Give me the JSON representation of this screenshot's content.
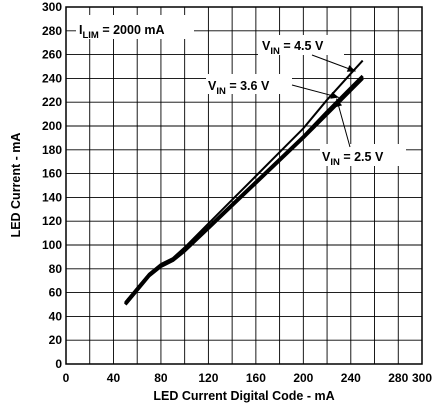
{
  "chart_data": {
    "type": "line",
    "xlabel": "LED Current Digital Code - mA",
    "ylabel": "LED Current - mA",
    "xlim": [
      0,
      300
    ],
    "ylim": [
      0,
      300
    ],
    "xticks": [
      0,
      40,
      80,
      120,
      160,
      200,
      240,
      280,
      300
    ],
    "yticks": [
      0,
      20,
      40,
      60,
      80,
      100,
      120,
      140,
      160,
      180,
      200,
      220,
      240,
      260,
      280,
      300
    ],
    "grid": true,
    "series": [
      {
        "name": "VIN = 4.5 V",
        "x": [
          50,
          60,
          70,
          80,
          90,
          100,
          120,
          140,
          160,
          180,
          200,
          220,
          240,
          250
        ],
        "y": [
          52,
          64,
          76,
          84,
          89,
          98,
          118,
          138,
          158,
          178,
          198,
          222,
          244,
          255
        ]
      },
      {
        "name": "VIN = 3.6 V",
        "x": [
          50,
          60,
          70,
          80,
          90,
          100,
          120,
          140,
          160,
          180,
          200,
          220,
          240,
          250
        ],
        "y": [
          51,
          63,
          75,
          83,
          88,
          96,
          115,
          134,
          153,
          172,
          191,
          212,
          232,
          242
        ]
      },
      {
        "name": "VIN = 2.5 V",
        "x": [
          50,
          60,
          70,
          80,
          90,
          100,
          120,
          140,
          160,
          180,
          200,
          220,
          240,
          250
        ],
        "y": [
          50,
          62,
          74,
          82,
          87,
          95,
          114,
          133,
          152,
          171,
          190,
          210,
          230,
          240
        ]
      }
    ],
    "annotations": [
      {
        "main": "I",
        "sub": "LIM",
        "rest": " = 2000 mA"
      },
      {
        "main": "V",
        "sub": "IN",
        "rest": " = 4.5 V"
      },
      {
        "main": "V",
        "sub": "IN",
        "rest": " = 3.6 V"
      },
      {
        "main": "V",
        "sub": "IN",
        "rest": " = 2.5 V"
      }
    ]
  }
}
